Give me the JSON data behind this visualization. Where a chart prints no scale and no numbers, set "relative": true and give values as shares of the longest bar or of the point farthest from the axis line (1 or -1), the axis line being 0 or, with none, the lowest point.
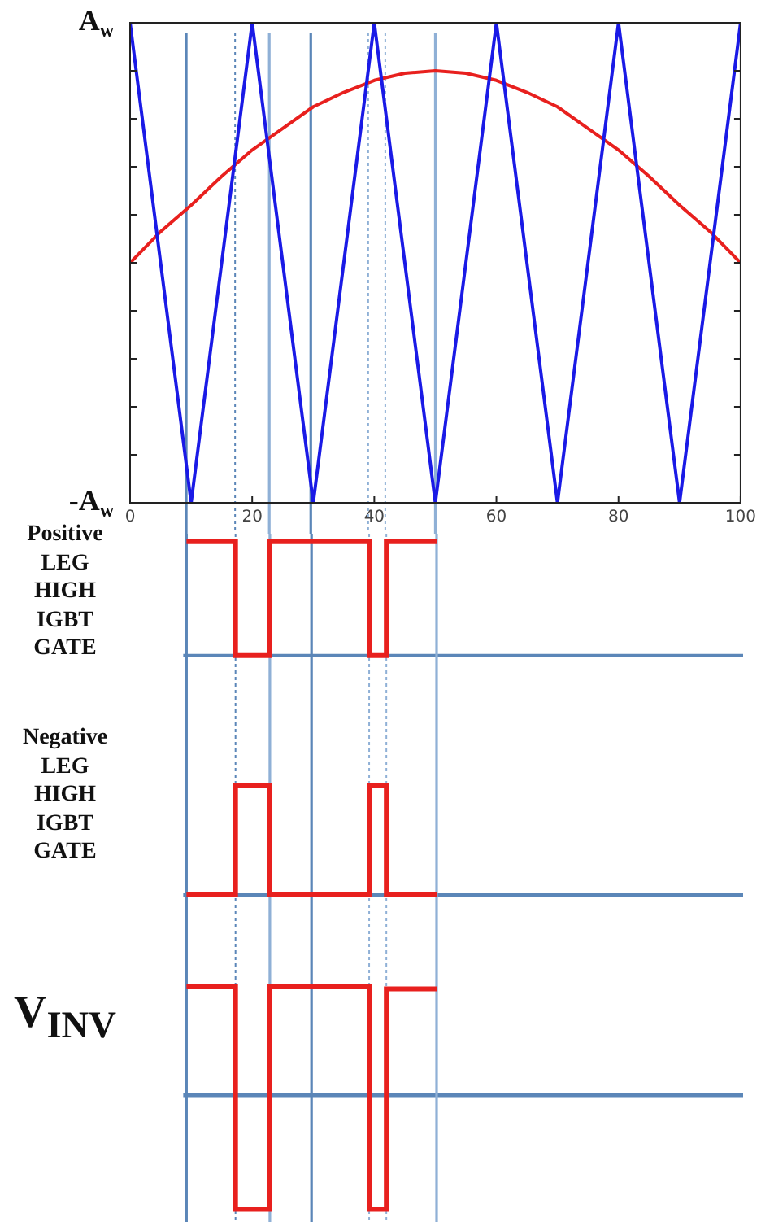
{
  "chart_data": [
    {
      "type": "line",
      "relative": true,
      "xlim": [
        0,
        100
      ],
      "xticks": [
        0,
        20,
        40,
        60,
        80,
        100
      ],
      "marker": "none",
      "legend": false,
      "annotations": [
        "A$_{w}$",
        "-A$_{w}$"
      ],
      "series": [
        {
          "color": "#1a1ae6",
          "x": [
            0,
            10,
            20,
            30,
            40,
            50,
            60,
            70,
            80,
            90,
            100
          ],
          "values": [
            1,
            0,
            1,
            0,
            1,
            0,
            1,
            0,
            1,
            0,
            1
          ]
        },
        {
          "color": "#e8201e",
          "x": [
            0,
            5,
            10,
            15,
            20,
            25,
            30,
            35,
            40,
            45,
            50,
            55,
            60,
            65,
            70,
            75,
            80,
            85,
            90,
            95,
            100
          ],
          "values": [
            0.5,
            0.565,
            0.62,
            0.68,
            0.735,
            0.78,
            0.825,
            0.855,
            0.88,
            0.895,
            0.9,
            0.895,
            0.88,
            0.855,
            0.825,
            0.78,
            0.735,
            0.68,
            0.62,
            0.565,
            0.5
          ]
        }
      ],
      "ref_lines": [
        {
          "axis": "x",
          "value": 9.2,
          "color": "#5b86b8",
          "line_style": "solid"
        },
        {
          "axis": "x",
          "value": 17.2,
          "color": "#5b86b8",
          "line_style": "dotted"
        },
        {
          "axis": "x",
          "value": 22.8,
          "color": "#8fb0d6",
          "line_style": "solid"
        },
        {
          "axis": "x",
          "value": 29.6,
          "color": "#5b86b8",
          "line_style": "solid"
        },
        {
          "axis": "x",
          "value": 39,
          "color": "#8fb0d6",
          "line_style": "dotted"
        },
        {
          "axis": "x",
          "value": 41.8,
          "color": "#8fb0d6",
          "line_style": "dotted"
        },
        {
          "axis": "x",
          "value": 50,
          "color": "#8fb0d6",
          "line_style": "solid"
        }
      ]
    },
    {
      "type": "step",
      "ylabel": "Positive LEG HIGH IGBT GATE",
      "relative": true,
      "xlim": [
        0,
        100
      ],
      "xticks": [
        0,
        20,
        40,
        60,
        80,
        100
      ],
      "tick_labels": false,
      "marker": "none",
      "legend": false,
      "series": [
        {
          "color": "#e8201e",
          "x": [
            9.2,
            17.2,
            22.8,
            39,
            41.8,
            50
          ],
          "values": [
            1,
            0,
            1,
            0,
            1,
            1
          ]
        }
      ],
      "ref_lines": [
        {
          "axis": "x",
          "value": 9.2,
          "color": "#5b86b8",
          "line_style": "solid"
        },
        {
          "axis": "x",
          "value": 17.2,
          "color": "#5b86b8",
          "line_style": "dotted"
        },
        {
          "axis": "x",
          "value": 22.8,
          "color": "#8fb0d6",
          "line_style": "solid"
        },
        {
          "axis": "x",
          "value": 29.6,
          "color": "#5b86b8",
          "line_style": "solid"
        },
        {
          "axis": "x",
          "value": 39,
          "color": "#8fb0d6",
          "line_style": "dotted"
        },
        {
          "axis": "x",
          "value": 41.8,
          "color": "#8fb0d6",
          "line_style": "dotted"
        },
        {
          "axis": "x",
          "value": 50,
          "color": "#8fb0d6",
          "line_style": "solid"
        }
      ]
    },
    {
      "type": "step",
      "ylabel": "Negative LEG HIGH IGBT GATE",
      "relative": true,
      "xlim": [
        0,
        100
      ],
      "xticks": [
        0,
        20,
        40,
        60,
        80,
        100
      ],
      "tick_labels": false,
      "marker": "none",
      "legend": false,
      "series": [
        {
          "color": "#e8201e",
          "x": [
            9.2,
            17.2,
            22.8,
            39,
            41.8,
            50
          ],
          "values": [
            0,
            1,
            0,
            1,
            0,
            0
          ]
        }
      ],
      "ref_lines": [
        {
          "axis": "x",
          "value": 9.2,
          "color": "#5b86b8",
          "line_style": "solid"
        },
        {
          "axis": "x",
          "value": 17.2,
          "color": "#5b86b8",
          "line_style": "dotted"
        },
        {
          "axis": "x",
          "value": 22.8,
          "color": "#8fb0d6",
          "line_style": "solid"
        },
        {
          "axis": "x",
          "value": 29.6,
          "color": "#5b86b8",
          "line_style": "solid"
        },
        {
          "axis": "x",
          "value": 39,
          "color": "#8fb0d6",
          "line_style": "dotted"
        },
        {
          "axis": "x",
          "value": 41.8,
          "color": "#8fb0d6",
          "line_style": "dotted"
        },
        {
          "axis": "x",
          "value": 50,
          "color": "#8fb0d6",
          "line_style": "solid"
        }
      ]
    },
    {
      "type": "step",
      "ylabel": "V$_{INV}$",
      "relative": true,
      "xlim": [
        0,
        100
      ],
      "xticks": [
        0,
        20,
        40,
        60,
        80,
        100
      ],
      "tick_labels": false,
      "marker": "none",
      "legend": false,
      "series": [
        {
          "color": "#e8201e",
          "x": [
            9.2,
            17.2,
            22.8,
            39,
            41.8,
            50
          ],
          "values": [
            0.95,
            -1,
            0.95,
            -1,
            0.93,
            0.93
          ]
        }
      ],
      "ref_lines": [
        {
          "axis": "y",
          "value": 0,
          "color": "#5b86b8",
          "line_style": "solid"
        },
        {
          "axis": "x",
          "value": 9.2,
          "color": "#5b86b8",
          "line_style": "solid"
        },
        {
          "axis": "x",
          "value": 17.2,
          "color": "#5b86b8",
          "line_style": "dotted"
        },
        {
          "axis": "x",
          "value": 22.8,
          "color": "#8fb0d6",
          "line_style": "solid"
        },
        {
          "axis": "x",
          "value": 29.6,
          "color": "#5b86b8",
          "line_style": "solid"
        },
        {
          "axis": "x",
          "value": 39,
          "color": "#8fb0d6",
          "line_style": "dotted"
        },
        {
          "axis": "x",
          "value": 41.8,
          "color": "#8fb0d6",
          "line_style": "dotted"
        },
        {
          "axis": "x",
          "value": 50,
          "color": "#8fb0d6",
          "line_style": "solid"
        }
      ]
    }
  ]
}
